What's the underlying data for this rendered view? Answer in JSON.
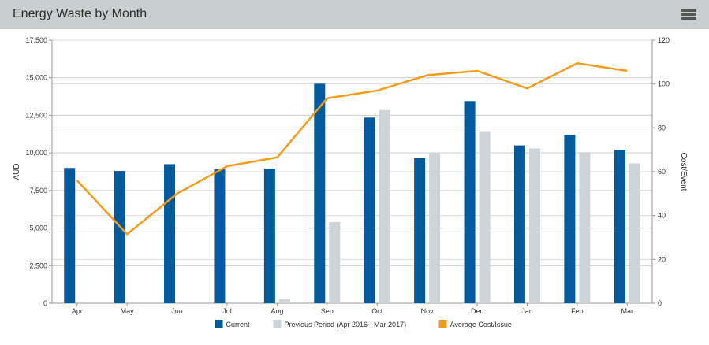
{
  "header": {
    "title": "Energy Waste by Month",
    "menu_icon": "hamburger-menu-icon"
  },
  "colors": {
    "current": "#015a9c",
    "previous": "#cfd4d9",
    "average": "#f29c1b",
    "grid": "#cccccc",
    "header_bg": "#c9cfce"
  },
  "chart_data": {
    "type": "bar",
    "categories": [
      "Apr",
      "May",
      "Jun",
      "Jul",
      "Aug",
      "Sep",
      "Oct",
      "Nov",
      "Dec",
      "Jan",
      "Feb",
      "Mar"
    ],
    "series": [
      {
        "name": "Current",
        "type": "bar",
        "axis": "left",
        "values": [
          9000,
          8800,
          9250,
          8900,
          8950,
          14600,
          12350,
          9650,
          13450,
          10500,
          11200,
          10200
        ]
      },
      {
        "name": "Previous Period (Apr 2016 - Mar 2017)",
        "type": "bar",
        "axis": "left",
        "values": [
          0,
          0,
          0,
          0,
          270,
          5400,
          12850,
          10000,
          11450,
          10300,
          10050,
          9300
        ]
      },
      {
        "name": "Average Cost/Issue",
        "type": "line",
        "axis": "right",
        "values": [
          56,
          31.5,
          50,
          62.5,
          66.5,
          93.5,
          97,
          104,
          106,
          98,
          109.5,
          106
        ]
      }
    ],
    "y_left": {
      "label": "AUD",
      "range": [
        0,
        17500
      ],
      "ticks": [
        0,
        2500,
        5000,
        7500,
        10000,
        12500,
        15000,
        17500
      ],
      "tick_labels": [
        "0",
        "2,500",
        "5,000",
        "7,500",
        "10,000",
        "12,500",
        "15,000",
        "17,500"
      ]
    },
    "y_right": {
      "label": "Cost/Event",
      "range": [
        0,
        120
      ],
      "ticks": [
        0,
        20,
        40,
        60,
        80,
        100,
        120
      ],
      "tick_labels": [
        "0",
        "20",
        "40",
        "60",
        "80",
        "100",
        "120"
      ]
    },
    "grid": true,
    "legend_position": "bottom"
  }
}
